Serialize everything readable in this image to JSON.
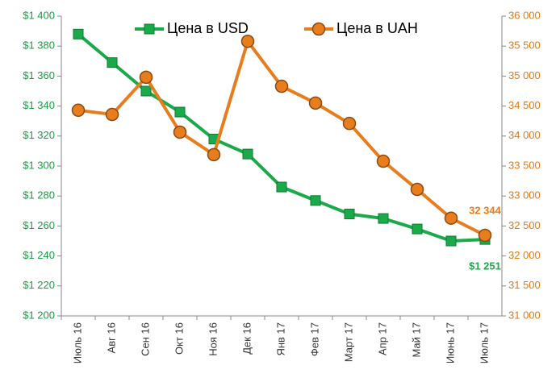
{
  "chart_data": {
    "type": "line",
    "categories": [
      "Июль 16",
      "Авг 16",
      "Сен 16",
      "Окт 16",
      "Ноя 16",
      "Дек 16",
      "Янв 17",
      "Фев 17",
      "Март 17",
      "Апр 17",
      "Май 17",
      "Июнь 17",
      "Июль 17"
    ],
    "series": [
      {
        "name": "Цена в USD",
        "color": "#1aaa4a",
        "marker": "square",
        "axis": "y",
        "values": [
          1388,
          1369,
          1350,
          1336,
          1318,
          1308,
          1286,
          1277,
          1268,
          1265,
          1258,
          1250,
          1251
        ],
        "value_labels": [
          null,
          null,
          null,
          null,
          null,
          null,
          null,
          null,
          null,
          null,
          null,
          null,
          "$1 251"
        ]
      },
      {
        "name": "Цена в UAH",
        "color": "#e87d1e",
        "marker": "circle",
        "axis": "y2",
        "values": [
          34430,
          34360,
          34980,
          34065,
          33690,
          35580,
          34830,
          34550,
          34210,
          33580,
          33110,
          32630,
          32344
        ],
        "value_labels": [
          null,
          null,
          null,
          null,
          null,
          null,
          null,
          null,
          null,
          null,
          null,
          null,
          "32 344"
        ]
      }
    ],
    "ylim": [
      1200,
      1400
    ],
    "yticks": [
      {
        "value": 1200,
        "label": "$1 200"
      },
      {
        "value": 1220,
        "label": "$1 220"
      },
      {
        "value": 1240,
        "label": "$1 240"
      },
      {
        "value": 1260,
        "label": "$1 260"
      },
      {
        "value": 1280,
        "label": "$1 280"
      },
      {
        "value": 1300,
        "label": "$1 300"
      },
      {
        "value": 1320,
        "label": "$1 320"
      },
      {
        "value": 1340,
        "label": "$1 340"
      },
      {
        "value": 1360,
        "label": "$1 360"
      },
      {
        "value": 1380,
        "label": "$1 380"
      },
      {
        "value": 1400,
        "label": "$1 400"
      }
    ],
    "y2lim": [
      31000,
      36000
    ],
    "y2ticks": [
      {
        "value": 31000,
        "label": "31 000"
      },
      {
        "value": 31500,
        "label": "31 500"
      },
      {
        "value": 32000,
        "label": "32 000"
      },
      {
        "value": 32500,
        "label": "32 500"
      },
      {
        "value": 33000,
        "label": "33 000"
      },
      {
        "value": 33500,
        "label": "33 500"
      },
      {
        "value": 34000,
        "label": "34 000"
      },
      {
        "value": 34500,
        "label": "34 500"
      },
      {
        "value": 35000,
        "label": "35 000"
      },
      {
        "value": 35500,
        "label": "35 500"
      },
      {
        "value": 36000,
        "label": "36 000"
      }
    ],
    "legend": "top",
    "grid": false
  }
}
